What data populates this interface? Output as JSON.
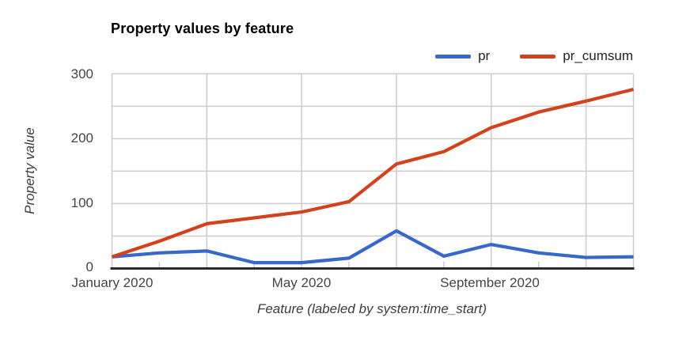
{
  "chart": {
    "title": "Property values by feature",
    "y_axis": {
      "title": "Property value",
      "tick_labels": [
        "0",
        "100",
        "200",
        "300"
      ]
    },
    "x_axis": {
      "title": "Feature (labeled by system:time_start)",
      "tick_labels": [
        "January 2020",
        "May 2020",
        "September 2020"
      ]
    },
    "legend": {
      "position": "top-right",
      "items": [
        {
          "label": "pr"
        },
        {
          "label": "pr_cumsum"
        }
      ]
    },
    "colors": {
      "series_pr": "#3868C9",
      "series_pr_cumsum": "#D2421C",
      "gridline": "#cccccc",
      "baseline": "#2b2b2b",
      "tick_text": "#444444",
      "axis_title_text": "#3c3c3c",
      "title_text": "#000000",
      "legend_text": "#222222",
      "background": "#ffffff"
    }
  },
  "chart_data": {
    "type": "line",
    "x": [
      "Jan 2020",
      "Feb 2020",
      "Mar 2020",
      "Apr 2020",
      "May 2020",
      "Jun 2020",
      "Jul 2020",
      "Aug 2020",
      "Sep 2020",
      "Oct 2020",
      "Nov 2020",
      "Dec 2020"
    ],
    "x_tick_labels_shown": [
      "January 2020",
      "May 2020",
      "September 2020"
    ],
    "series": [
      {
        "name": "pr",
        "color": "#3868C9",
        "values": [
          18,
          24,
          27,
          9,
          9,
          16,
          58,
          19,
          37,
          24,
          17,
          18
        ]
      },
      {
        "name": "pr_cumsum",
        "color": "#D2421C",
        "values": [
          18,
          42,
          69,
          78,
          87,
          103,
          161,
          180,
          217,
          241,
          258,
          276
        ]
      }
    ],
    "title": "Property values by feature",
    "xlabel": "Feature (labeled by system:time_start)",
    "ylabel": "Property value",
    "ylim": [
      0,
      300
    ],
    "yticks": [
      0,
      100,
      200,
      300
    ],
    "ygrid_step": 50,
    "grid": true,
    "legend_position": "top-right"
  }
}
